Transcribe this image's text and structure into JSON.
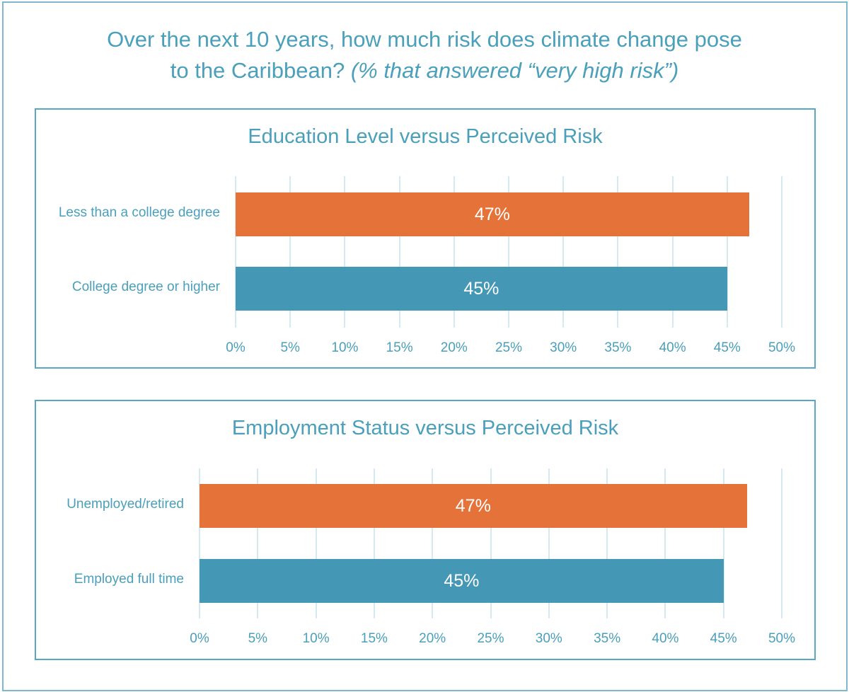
{
  "title": {
    "line1": "Over the next 10 years, how much risk does climate change pose",
    "line2_plain": "to the Caribbean? ",
    "line2_italic": "(% that answered “very high risk”)"
  },
  "colors": {
    "orange": "#E57339",
    "blue": "#4498B6",
    "text": "#4A9FBA",
    "grid": "#D6E9F1",
    "border": "#5AA7C2"
  },
  "panels": [
    {
      "title": "Education Level versus Perceived Risk",
      "categories": [
        "Less than a college degree",
        "College degree or higher"
      ],
      "values": [
        47,
        45
      ],
      "value_labels": [
        "47%",
        "45%"
      ],
      "ticks": [
        "0%",
        "5%",
        "10%",
        "15%",
        "20%",
        "25%",
        "30%",
        "35%",
        "40%",
        "45%",
        "50%"
      ]
    },
    {
      "title": "Employment Status versus Perceived Risk",
      "categories": [
        "Unemployed/retired",
        "Employed full time"
      ],
      "values": [
        47,
        45
      ],
      "value_labels": [
        "47%",
        "45%"
      ],
      "ticks": [
        "0%",
        "5%",
        "10%",
        "15%",
        "20%",
        "25%",
        "30%",
        "35%",
        "40%",
        "45%",
        "50%"
      ]
    }
  ],
  "chart_data": [
    {
      "type": "bar",
      "orientation": "horizontal",
      "title": "Education Level versus Perceived Risk",
      "categories": [
        "Less than a college degree",
        "College degree or higher"
      ],
      "values": [
        47,
        45
      ],
      "colors": [
        "#E57339",
        "#4498B6"
      ],
      "xlabel": "",
      "ylabel": "",
      "xlim": [
        0,
        50
      ],
      "xticks": [
        "0%",
        "5%",
        "10%",
        "15%",
        "20%",
        "25%",
        "30%",
        "35%",
        "40%",
        "45%",
        "50%"
      ],
      "grid": true,
      "data_labels": [
        "47%",
        "45%"
      ]
    },
    {
      "type": "bar",
      "orientation": "horizontal",
      "title": "Employment Status versus Perceived Risk",
      "categories": [
        "Unemployed/retired",
        "Employed full time"
      ],
      "values": [
        47,
        45
      ],
      "colors": [
        "#E57339",
        "#4498B6"
      ],
      "xlabel": "",
      "ylabel": "",
      "xlim": [
        0,
        50
      ],
      "xticks": [
        "0%",
        "5%",
        "10%",
        "15%",
        "20%",
        "25%",
        "30%",
        "35%",
        "40%",
        "45%",
        "50%"
      ],
      "grid": true,
      "data_labels": [
        "47%",
        "45%"
      ]
    }
  ]
}
